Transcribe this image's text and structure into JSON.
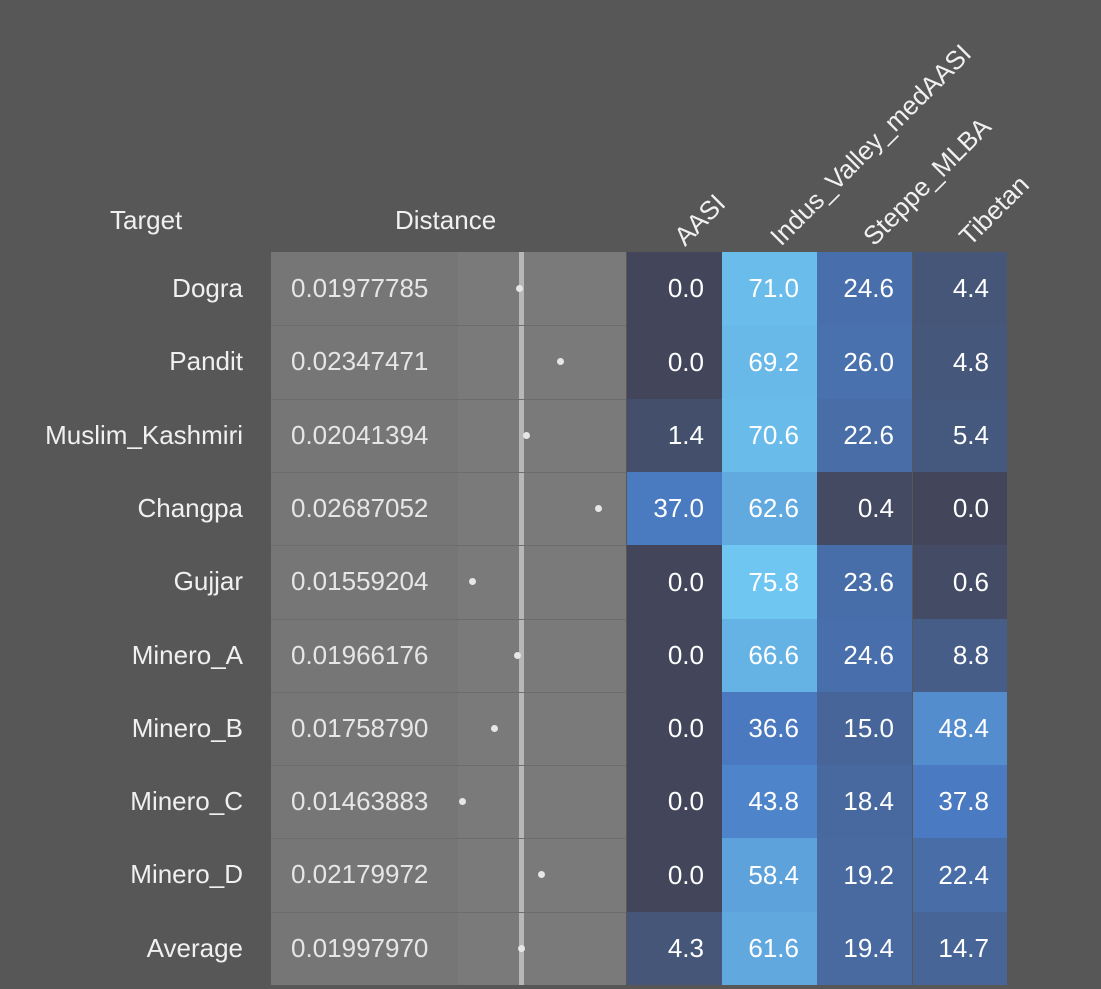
{
  "chart_data": {
    "type": "table",
    "headers": {
      "target": "Target",
      "distance": "Distance",
      "columns": [
        "AASI",
        "Indus_Valley_medAASI",
        "Steppe_MLBA",
        "Tibetan"
      ]
    },
    "rows": [
      {
        "target": "Dogra",
        "distance": "0.01977785",
        "values": [
          "0.0",
          "71.0",
          "24.6",
          "4.4"
        ]
      },
      {
        "target": "Pandit",
        "distance": "0.02347471",
        "values": [
          "0.0",
          "69.2",
          "26.0",
          "4.8"
        ]
      },
      {
        "target": "Muslim_Kashmiri",
        "distance": "0.02041394",
        "values": [
          "1.4",
          "70.6",
          "22.6",
          "5.4"
        ]
      },
      {
        "target": "Changpa",
        "distance": "0.02687052",
        "values": [
          "37.0",
          "62.6",
          "0.4",
          "0.0"
        ]
      },
      {
        "target": "Gujjar",
        "distance": "0.01559204",
        "values": [
          "0.0",
          "75.8",
          "23.6",
          "0.6"
        ]
      },
      {
        "target": "Minero_A",
        "distance": "0.01966176",
        "values": [
          "0.0",
          "66.6",
          "24.6",
          "8.8"
        ]
      },
      {
        "target": "Minero_B",
        "distance": "0.01758790",
        "values": [
          "0.0",
          "36.6",
          "15.0",
          "48.4"
        ]
      },
      {
        "target": "Minero_C",
        "distance": "0.01463883",
        "values": [
          "0.0",
          "43.8",
          "18.4",
          "37.8"
        ]
      },
      {
        "target": "Minero_D",
        "distance": "0.02179972",
        "values": [
          "0.0",
          "58.4",
          "19.2",
          "22.4"
        ]
      },
      {
        "target": "Average",
        "distance": "0.01997970",
        "values": [
          "4.3",
          "61.6",
          "19.4",
          "14.7"
        ]
      }
    ],
    "colors": {
      "background": "#575757",
      "cell_low": "#43465a",
      "cell_mid": "#4a7cc4",
      "cell_high": "#6fc6f0"
    }
  }
}
